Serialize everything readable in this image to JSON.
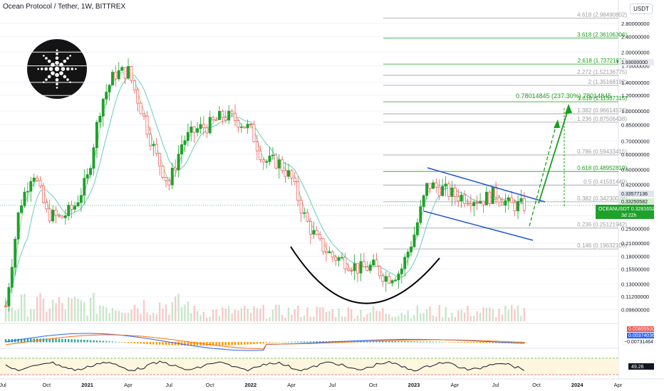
{
  "header": {
    "title": "Ocean Protocol / Tether, 1W, BITTREX",
    "currency": "USDT"
  },
  "colors": {
    "up": "#26a69a",
    "up_fill": "#1ea12b",
    "down": "#ef5350",
    "fib_green": "#1a9e1a",
    "fib_gray": "#9e9e9e",
    "channel": "#2155d4",
    "ma": "#66cdbb",
    "signal": "#66d66a"
  },
  "chart_data": {
    "type": "candlestick",
    "scale": "log",
    "ylim": [
      0.085,
      3.4
    ],
    "x_ticks": [
      "Jul",
      "Oct",
      "2021",
      "Apr",
      "Jul",
      "Oct",
      "2022",
      "Apr",
      "Jul",
      "Oct",
      "2023",
      "Apr",
      "Jul",
      "Oct",
      "2024",
      "Apr"
    ],
    "y_ticks": [
      "2.80000000",
      "2.40000000",
      "2.00000000",
      "1.70000000",
      "1.40000000",
      "1.20000000",
      "1.00000000",
      "0.85000000",
      "0.70000000",
      "0.60000000",
      "0.50000000",
      "0.42000000",
      "0.35000000",
      "0.29000000",
      "0.25000000",
      "0.21000000",
      "0.18000000",
      "0.15500000",
      "0.13000000",
      "0.11200000",
      "0.09600000"
    ],
    "y_tick_values": [
      2.8,
      2.4,
      2.0,
      1.7,
      1.4,
      1.2,
      1.0,
      0.85,
      0.7,
      0.6,
      0.5,
      0.42,
      0.35,
      0.29,
      0.25,
      0.21,
      0.18,
      0.155,
      0.13,
      0.112,
      0.096
    ],
    "price_path": [
      {
        "t": "2020-07",
        "v": 0.1
      },
      {
        "t": "2020-08",
        "v": 0.32
      },
      {
        "t": "2020-09",
        "v": 0.5
      },
      {
        "t": "2020-10",
        "v": 0.3
      },
      {
        "t": "2020-11",
        "v": 0.28
      },
      {
        "t": "2020-12",
        "v": 0.32
      },
      {
        "t": "2021-01",
        "v": 0.45
      },
      {
        "t": "2021-02",
        "v": 1.1
      },
      {
        "t": "2021-03",
        "v": 1.55
      },
      {
        "t": "2021-04",
        "v": 1.6
      },
      {
        "t": "2021-05",
        "v": 1.0
      },
      {
        "t": "2021-06",
        "v": 0.6
      },
      {
        "t": "2021-07",
        "v": 0.42
      },
      {
        "t": "2021-08",
        "v": 0.7
      },
      {
        "t": "2021-09",
        "v": 0.8
      },
      {
        "t": "2021-10",
        "v": 0.85
      },
      {
        "t": "2021-11",
        "v": 0.95
      },
      {
        "t": "2021-12",
        "v": 0.9
      },
      {
        "t": "2022-01",
        "v": 0.8
      },
      {
        "t": "2022-02",
        "v": 0.55
      },
      {
        "t": "2022-03",
        "v": 0.55
      },
      {
        "t": "2022-04",
        "v": 0.45
      },
      {
        "t": "2022-05",
        "v": 0.28
      },
      {
        "t": "2022-06",
        "v": 0.21
      },
      {
        "t": "2022-07",
        "v": 0.18
      },
      {
        "t": "2022-08",
        "v": 0.17
      },
      {
        "t": "2022-09",
        "v": 0.155
      },
      {
        "t": "2022-10",
        "v": 0.16
      },
      {
        "t": "2022-11",
        "v": 0.14
      },
      {
        "t": "2022-12",
        "v": 0.15
      },
      {
        "t": "2023-01",
        "v": 0.23
      },
      {
        "t": "2023-02",
        "v": 0.42
      },
      {
        "t": "2023-03",
        "v": 0.4
      },
      {
        "t": "2023-04",
        "v": 0.37
      },
      {
        "t": "2023-05",
        "v": 0.36
      },
      {
        "t": "2023-06",
        "v": 0.35
      },
      {
        "t": "2023-07",
        "v": 0.38
      },
      {
        "t": "2023-08",
        "v": 0.33
      },
      {
        "t": "2023-09",
        "v": 0.328
      }
    ],
    "fib_levels": [
      {
        "label": "4.618 (2.98490802)",
        "value": 2.98490802,
        "color": "gray"
      },
      {
        "label": "3.618 (2.36106306)",
        "value": 2.36106306,
        "color": "green"
      },
      {
        "label": "2.618 (1.73721811)",
        "value": 1.73721811,
        "color": "green"
      },
      {
        "label": "2.272 (1.52136775)",
        "value": 1.52136775,
        "color": "gray"
      },
      {
        "label": "2 (1.35168192)",
        "value": 1.35168192,
        "color": "gray"
      },
      {
        "label": "1.618 (1.11337315)",
        "value": 1.11337315,
        "color": "green"
      },
      {
        "label": "1.382 (0.96614574)",
        "value": 0.96614574,
        "color": "gray"
      },
      {
        "label": "1.236 (0.87506438)",
        "value": 0.87506438,
        "color": "gray"
      },
      {
        "label": "0.786 (0.59433415)",
        "value": 0.59433415,
        "color": "gray"
      },
      {
        "label": "0.618 (0.48952819)",
        "value": 0.48952819,
        "color": "green"
      },
      {
        "label": "0.5 (0.41591449)",
        "value": 0.41591449,
        "color": "gray"
      },
      {
        "label": "0.382 (0.34230078)",
        "value": 0.34230078,
        "color": "gray"
      },
      {
        "label": "0.236 (0.25121942)",
        "value": 0.25121942,
        "color": "gray"
      },
      {
        "label": "0.146 (0.19632106)",
        "value": 0.19632106,
        "color": "gray"
      }
    ],
    "measure_label": "0.78014845 (237.30%) 78014845",
    "price_tags": [
      {
        "label": "High",
        "value": "1.93000000"
      },
      {
        "value": "0.33577136"
      },
      {
        "value": "0.33250582"
      },
      {
        "value": "OCEANUSDT 0.32816526"
      },
      {
        "value": "3d 22h"
      }
    ],
    "macd_tags": [
      "0.00805500",
      "0.00374036",
      "−0.00731464"
    ],
    "rsi_value": "49.26"
  }
}
